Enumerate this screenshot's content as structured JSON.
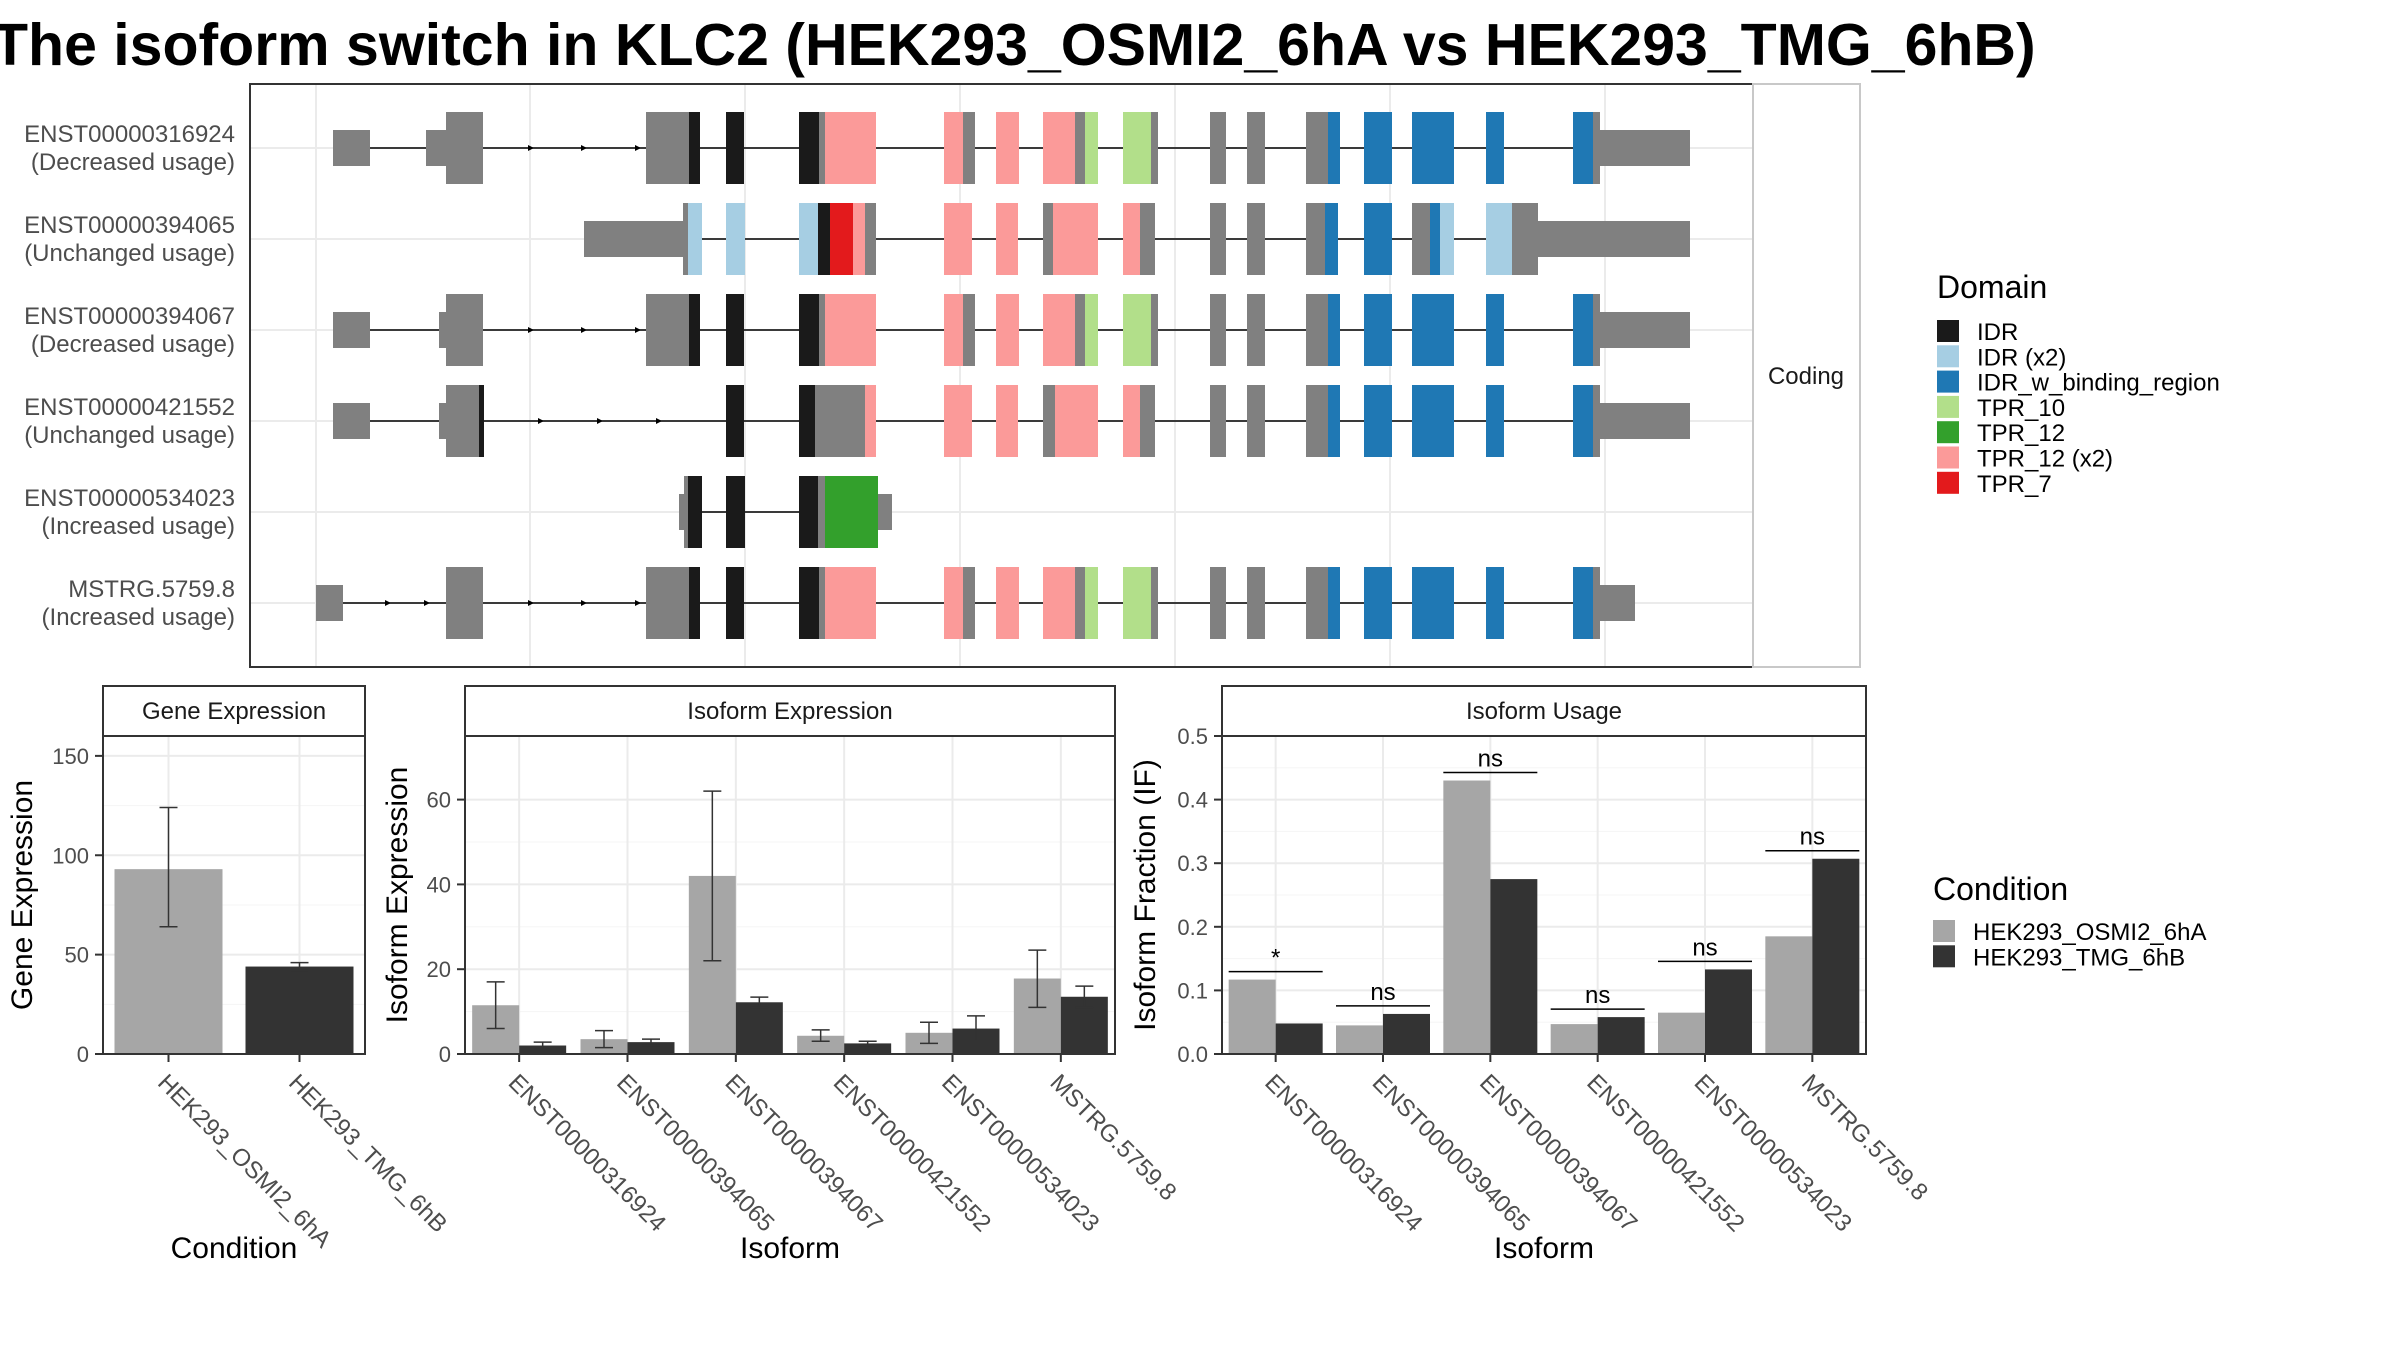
{
  "title": "The isoform switch in KLC2 (HEK293_OSMI2_6hA vs HEK293_TMG_6hB)",
  "colors": {
    "IDR": "#1a1a1a",
    "IDR (x2)": "#a6cee3",
    "IDR_w_binding_region": "#1f78b4",
    "TPR_10": "#b2df8a",
    "TPR_12": "#33a02c",
    "TPR_12 (x2)": "#fb9a99",
    "TPR_7": "#e31a1c",
    "noncoding": "#808080",
    "cond_a": "#a6a6a6",
    "cond_b": "#333333"
  },
  "structure": {
    "strip_label": "Coding",
    "transcripts": [
      {
        "id": "ENST00000316924",
        "usage": "(Decreased usage)"
      },
      {
        "id": "ENST00000394065",
        "usage": "(Unchanged usage)"
      },
      {
        "id": "ENST00000394067",
        "usage": "(Decreased usage)"
      },
      {
        "id": "ENST00000421552",
        "usage": "(Unchanged usage)"
      },
      {
        "id": "ENST00000534023",
        "usage": "(Increased usage)"
      },
      {
        "id": "MSTRG.5759.8",
        "usage": "(Increased usage)"
      }
    ]
  },
  "legend_domain": {
    "title": "Domain",
    "items": [
      "IDR",
      "IDR (x2)",
      "IDR_w_binding_region",
      "TPR_10",
      "TPR_12",
      "TPR_12 (x2)",
      "TPR_7"
    ]
  },
  "legend_condition": {
    "title": "Condition",
    "items": [
      "HEK293_OSMI2_6hA",
      "HEK293_TMG_6hB"
    ]
  },
  "chart_data": [
    {
      "type": "bar",
      "title": "Gene Expression",
      "xlabel": "Condition",
      "ylabel": "Gene Expression",
      "ylim": [
        0,
        160
      ],
      "yticks": [
        0,
        50,
        100,
        150
      ],
      "categories": [
        "HEK293_OSMI2_6hA",
        "HEK293_TMG_6hB"
      ],
      "values": [
        93,
        44
      ],
      "error": [
        [
          64,
          124
        ],
        [
          42,
          46
        ]
      ]
    },
    {
      "type": "bar",
      "title": "Isoform Expression",
      "xlabel": "Isoform",
      "ylabel": "Isoform Expression",
      "ylim": [
        0,
        75
      ],
      "yticks": [
        0,
        20,
        40,
        60
      ],
      "categories": [
        "ENST00000316924",
        "ENST00000394065",
        "ENST00000394067",
        "ENST00000421552",
        "ENST00000534023",
        "MSTRG.5759.8"
      ],
      "series": [
        {
          "name": "HEK293_OSMI2_6hA",
          "values": [
            11.5,
            3.5,
            42,
            4.3,
            5,
            17.8
          ],
          "error": [
            [
              6,
              17
            ],
            [
              1.5,
              5.5
            ],
            [
              22,
              62
            ],
            [
              3,
              5.7
            ],
            [
              2.5,
              7.5
            ],
            [
              11,
              24.5
            ]
          ]
        },
        {
          "name": "HEK293_TMG_6hB",
          "values": [
            2,
            2.8,
            12.2,
            2.5,
            6,
            13.5
          ],
          "error": [
            [
              1.2,
              2.8
            ],
            [
              2,
              3.5
            ],
            [
              11,
              13.4
            ],
            [
              2,
              3
            ],
            [
              3,
              9
            ],
            [
              11,
              16
            ]
          ]
        }
      ]
    },
    {
      "type": "bar",
      "title": "Isoform Usage",
      "xlabel": "Isoform",
      "ylabel": "Isoform Fraction (IF)",
      "ylim": [
        0,
        0.5
      ],
      "yticks": [
        0.0,
        0.1,
        0.2,
        0.3,
        0.4,
        0.5
      ],
      "categories": [
        "ENST00000316924",
        "ENST00000394065",
        "ENST00000394067",
        "ENST00000421552",
        "ENST00000534023",
        "MSTRG.5759.8"
      ],
      "series": [
        {
          "name": "HEK293_OSMI2_6hA",
          "values": [
            0.117,
            0.045,
            0.43,
            0.047,
            0.065,
            0.185
          ]
        },
        {
          "name": "HEK293_TMG_6hB",
          "values": [
            0.048,
            0.063,
            0.275,
            0.058,
            0.133,
            0.307
          ]
        }
      ],
      "significance": [
        "*",
        "ns",
        "ns",
        "ns",
        "ns",
        "ns"
      ]
    }
  ]
}
